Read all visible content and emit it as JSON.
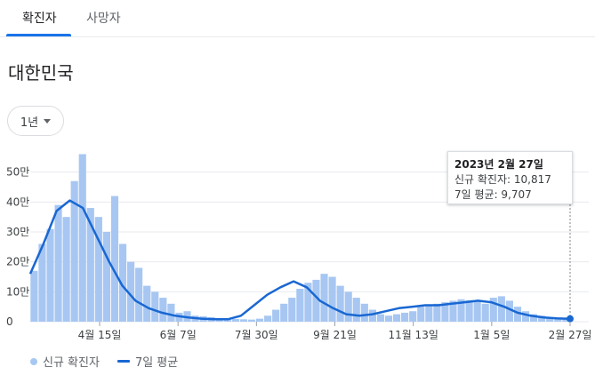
{
  "tabs": [
    {
      "label": "확진자",
      "active": true
    },
    {
      "label": "사망자",
      "active": false
    }
  ],
  "region": "대한민국",
  "range_selector": {
    "label": "1년",
    "icon": "dropdown-caret-icon"
  },
  "tooltip": {
    "date": "2023년 2월 27일",
    "line1": "신규 확진자: 10,817",
    "line2": "7일 평균: 9,707"
  },
  "legend": {
    "bars": "신규 확진자",
    "line": "7일 평균"
  },
  "colors": {
    "bar": "#a7c7f2",
    "line": "#1967d2",
    "accent": "#1a73e8",
    "grid": "#e8eaed"
  },
  "chart_data": {
    "type": "bar",
    "title": "",
    "ylim": [
      0,
      600000
    ],
    "y_ticks": [
      {
        "value": 0,
        "label": "0"
      },
      {
        "value": 100000,
        "label": "10만"
      },
      {
        "value": 200000,
        "label": "20만"
      },
      {
        "value": 300000,
        "label": "30만"
      },
      {
        "value": 400000,
        "label": "40만"
      },
      {
        "value": 500000,
        "label": "50만"
      }
    ],
    "x_ticks": [
      "4월 15일",
      "6월 7일",
      "7월 30일",
      "9월 21일",
      "11월 13일",
      "1월 5일",
      "2월 27일"
    ],
    "series": [
      {
        "name": "신규 확진자",
        "type": "bar",
        "values": [
          170000,
          260000,
          310000,
          390000,
          350000,
          470000,
          560000,
          380000,
          350000,
          300000,
          420000,
          260000,
          200000,
          180000,
          120000,
          100000,
          80000,
          60000,
          30000,
          35000,
          20000,
          18000,
          15000,
          12000,
          10000,
          9000,
          8000,
          7000,
          10000,
          20000,
          40000,
          60000,
          80000,
          110000,
          130000,
          140000,
          160000,
          150000,
          120000,
          100000,
          80000,
          60000,
          40000,
          25000,
          20000,
          25000,
          30000,
          35000,
          50000,
          55000,
          60000,
          65000,
          70000,
          75000,
          72000,
          70000,
          60000,
          80000,
          85000,
          70000,
          50000,
          35000,
          25000,
          20000,
          15000,
          12000,
          10817
        ]
      },
      {
        "name": "7일 평균",
        "type": "line",
        "values": [
          160000,
          260000,
          370000,
          405000,
          380000,
          290000,
          200000,
          120000,
          70000,
          45000,
          30000,
          20000,
          14000,
          10000,
          8000,
          8000,
          20000,
          55000,
          90000,
          115000,
          135000,
          115000,
          70000,
          45000,
          25000,
          20000,
          25000,
          35000,
          45000,
          50000,
          55000,
          55000,
          60000,
          65000,
          70000,
          65000,
          50000,
          30000,
          20000,
          14000,
          11000,
          9707
        ]
      }
    ]
  }
}
